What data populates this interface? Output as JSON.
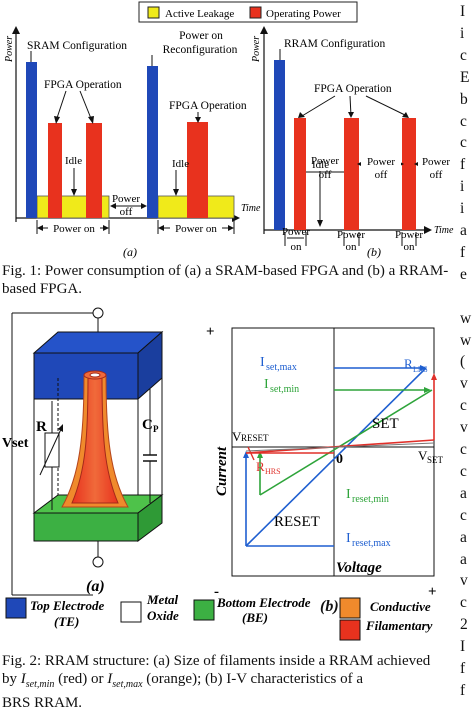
{
  "fig1": {
    "legend": {
      "active": "Active Leakage",
      "operating": "Operating Power"
    },
    "ylabel": "Power",
    "xlabel": "Time",
    "a": {
      "sram_config": "SRAM Configuration",
      "power_on_reconf_1": "Power on",
      "power_on_reconf_2": "Reconfiguration",
      "fpga_op_1": "FPGA Operation",
      "fpga_op_2": "FPGA Operation",
      "idle_1": "Idle",
      "idle_2": "Idle",
      "power_off_1": "Power",
      "power_off_2": "off",
      "power_on_1": "Power on",
      "power_on_2": "Power on",
      "label": "(a)"
    },
    "b": {
      "rram_config": "RRAM Configuration",
      "fpga_op": "FPGA Operation",
      "idle": "Idle",
      "power_word": "Power",
      "off_word": "off",
      "on_word": "on",
      "label": "(b)"
    },
    "caption": "Fig. 1: Power consumption of (a) a SRAM-based FPGA and (b) a RRAM-based FPGA."
  },
  "fig2": {
    "a": {
      "vset": "Vset",
      "r": "R",
      "cp": "C",
      "cp_sub": "P",
      "label": "(a)"
    },
    "b": {
      "ylabel": "Current",
      "xlabel": "Voltage",
      "plus_y": "+",
      "minus_x": "-",
      "plus_x": "+",
      "zero": "0",
      "iset_max": "I",
      "iset_max_sub": "set,max",
      "iset_min": "I",
      "iset_min_sub": "set,min",
      "rlrs": "R",
      "rlrs_sub": "LRS",
      "set": "SET",
      "vreset": "V",
      "vreset_sub": "RESET",
      "vset": "V",
      "vset_sub": "SET",
      "rhrs": "R",
      "rhrs_sub": "HRS",
      "ireset_min": "I",
      "ireset_min_sub": "reset,min",
      "reset": "RESET",
      "ireset_max": "I",
      "ireset_max_sub": "reset,max",
      "label": "(b)"
    },
    "legend": {
      "te_1": "Top Electrode",
      "te_2": "(TE)",
      "metal_1": "Metal",
      "metal_2": "Oxide",
      "be_1": "Bottom Electrode",
      "be_2": "(BE)",
      "cond_1": "Conductive",
      "cond_2": "Filamentary"
    },
    "caption_1": "Fig. 2: RRAM structure: (a) Size of filaments inside a RRAM achieved",
    "caption_2a": "by ",
    "caption_iset_min": "I",
    "caption_iset_min_sub": "set,min",
    "caption_2b": " (red) or ",
    "caption_iset_max": "I",
    "caption_iset_max_sub": "set,max",
    "caption_2c": " (orange); (b) I-V characteristics of a",
    "caption_3": "BRS RRAM."
  },
  "side_column": [
    "I",
    "i",
    "c",
    "E",
    "b",
    "c",
    "c",
    "f",
    "i",
    "i",
    "a",
    "f",
    "e",
    "",
    "w",
    "w",
    "(",
    "v",
    "c",
    "v",
    "c",
    "c",
    "a",
    "c",
    "a",
    "a",
    "v",
    "c",
    "2",
    "I",
    "f",
    "f"
  ]
}
